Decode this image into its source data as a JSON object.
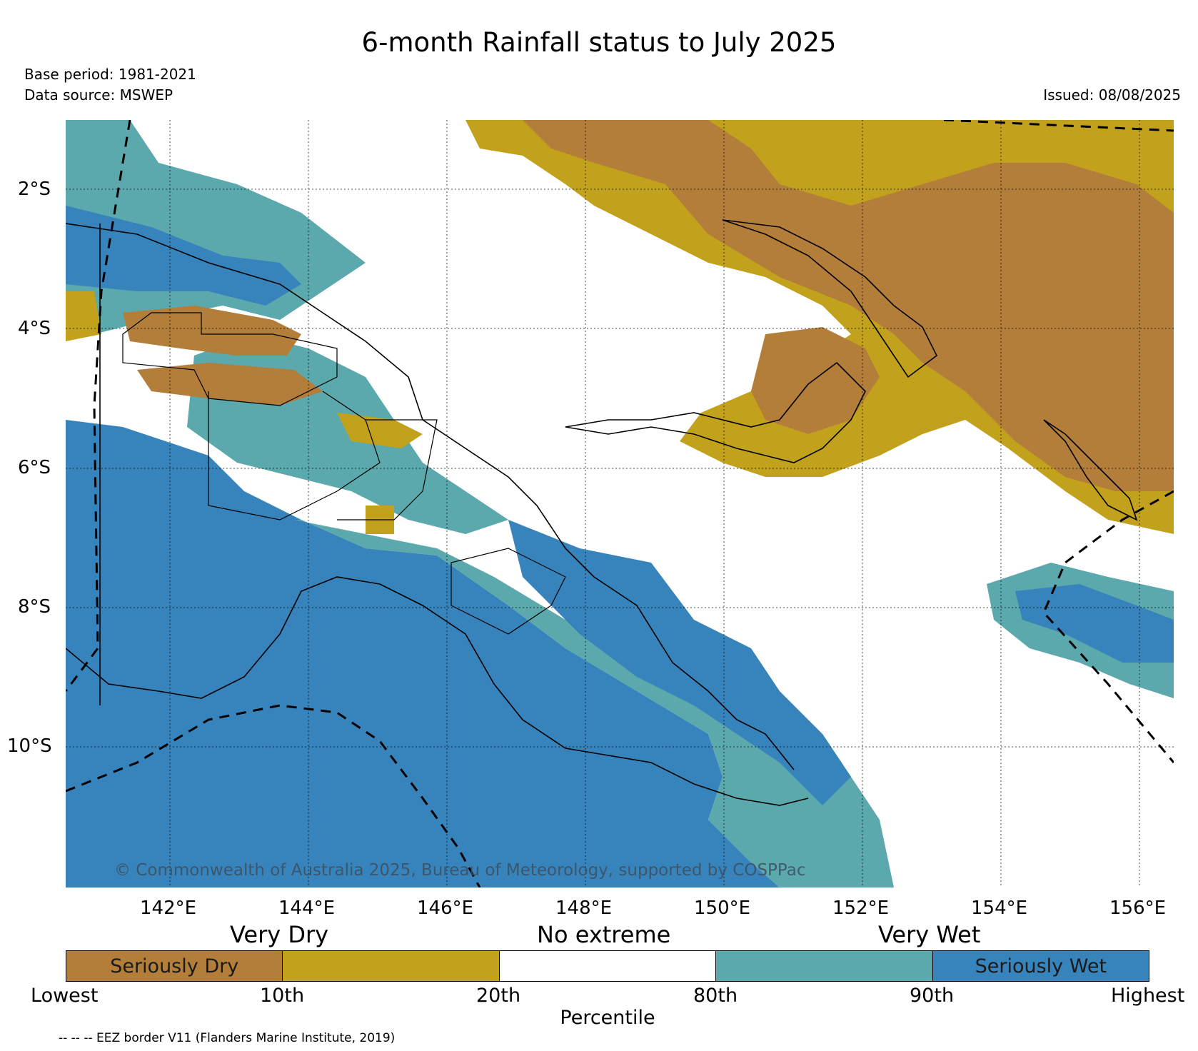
{
  "title": "6-month Rainfall status to July 2025",
  "base_period": "Base period: 1981-2021",
  "data_source": "Data source: MSWEP",
  "issued": "Issued: 08/08/2025",
  "copyright": "© Commonwealth of Australia 2025, Bureau of Meteorology, supported by COSPPac",
  "map": {
    "lat_labels": [
      "2°S",
      "4°S",
      "6°S",
      "8°S",
      "10°S"
    ],
    "lon_labels": [
      "142°E",
      "144°E",
      "146°E",
      "148°E",
      "150°E",
      "152°E",
      "154°E",
      "156°E"
    ],
    "lon_range": [
      140.5,
      156.5
    ],
    "lat_range": [
      -12,
      -1
    ]
  },
  "legend": {
    "categories": [
      "Very Dry",
      "No extreme",
      "Very Wet"
    ],
    "segments": [
      {
        "label": "Seriously Dry",
        "color": "#b37d3a"
      },
      {
        "label": "",
        "color": "#c2a21c"
      },
      {
        "label": "",
        "color": "#ffffff"
      },
      {
        "label": "",
        "color": "#5ba8ad"
      },
      {
        "label": "Seriously Wet",
        "color": "#3783bb"
      }
    ],
    "ticks": [
      "Lowest",
      "10th",
      "20th",
      "80th",
      "90th",
      "Highest"
    ],
    "axis_label": "Percentile"
  },
  "eez_note": "-- -- -- EEZ border V11 (Flanders Marine Institute, 2019)"
}
